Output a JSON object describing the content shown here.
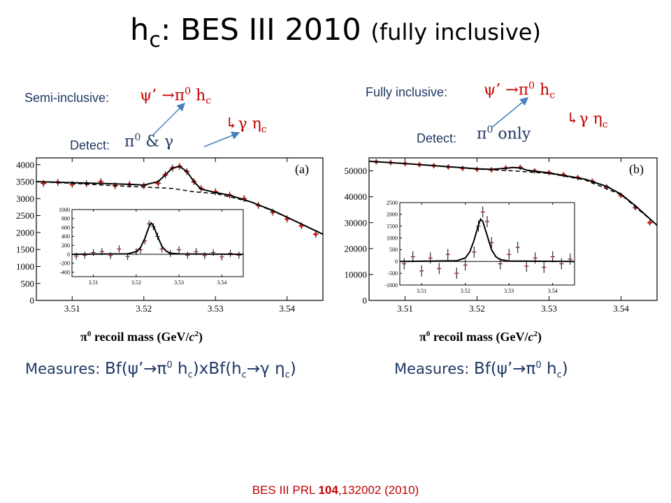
{
  "title": {
    "main": "h",
    "sub": "c",
    "rest": ": BES III 2010 ",
    "paren": "(fully inclusive)"
  },
  "left": {
    "semi_label": "Semi-inclusive:",
    "reaction": {
      "psi": "ψ’",
      "arrow": "→",
      "pi": "π",
      "pi_sup": "0",
      "h": " h",
      "h_sub": "c"
    },
    "decay": {
      "hook": "↳",
      "gamma": "γ",
      "eta": " η",
      "eta_sub": "c"
    },
    "detect_label": "Detect:",
    "detect_value": {
      "pi": "π",
      "pi_sup": "0",
      "rest": " & γ"
    },
    "measures_label": "Measures: ",
    "measures_value": {
      "a": "Bf(ψ’→π",
      "a_sup": "0",
      "b": " h",
      "b_sub": "c",
      "c": ")xBf(h",
      "c_sub": "c",
      "d": "→γ η",
      "d_sub": "c",
      "e": ")"
    }
  },
  "right": {
    "full_label": "Fully inclusive:",
    "reaction": {
      "psi": "ψ’",
      "arrow": "→",
      "pi": "π",
      "pi_sup": "0",
      "h": " h",
      "h_sub": "c"
    },
    "decay": {
      "hook": "↳",
      "gamma": "γ",
      "eta": " η",
      "eta_sub": "c"
    },
    "detect_label": "Detect:",
    "detect_value": {
      "pi": "π",
      "pi_sup": "0",
      "rest": " only"
    },
    "measures_label": "Measures: ",
    "measures_value": {
      "a": "Bf(ψ’→π",
      "a_sup": "0",
      "b": " h",
      "b_sub": "c",
      "c": ")"
    }
  },
  "footer": {
    "a": "BES III PRL ",
    "b": "104",
    "c": ",132002 (2010)"
  },
  "chart_data": [
    {
      "type": "scatter",
      "panel": "(a)",
      "xlabel": "π⁰ recoil mass (GeV/c²)",
      "xlim": [
        3.505,
        3.545
      ],
      "ylim": [
        0,
        4200
      ],
      "xticks": [
        3.51,
        3.52,
        3.53,
        3.54
      ],
      "yticks": [
        0,
        500,
        1000,
        1500,
        2000,
        2500,
        3000,
        3500,
        4000
      ],
      "series": [
        {
          "kind": "data",
          "x": [
            3.506,
            3.508,
            3.51,
            3.512,
            3.514,
            3.516,
            3.518,
            3.52,
            3.522,
            3.523,
            3.524,
            3.525,
            3.526,
            3.527,
            3.528,
            3.53,
            3.532,
            3.534,
            3.536,
            3.538,
            3.54,
            3.542,
            3.544
          ],
          "y": [
            3450,
            3480,
            3420,
            3440,
            3500,
            3380,
            3420,
            3380,
            3450,
            3700,
            3900,
            3950,
            3800,
            3500,
            3300,
            3200,
            3100,
            3000,
            2800,
            2600,
            2400,
            2200,
            1950
          ]
        },
        {
          "kind": "fit",
          "x": [
            3.505,
            3.51,
            3.515,
            3.518,
            3.52,
            3.522,
            3.523,
            3.524,
            3.525,
            3.526,
            3.527,
            3.528,
            3.53,
            3.532,
            3.535,
            3.538,
            3.54,
            3.542,
            3.545
          ],
          "y": [
            3500,
            3470,
            3440,
            3420,
            3400,
            3500,
            3700,
            3900,
            3950,
            3800,
            3500,
            3280,
            3180,
            3100,
            2900,
            2650,
            2450,
            2250,
            1950
          ]
        },
        {
          "kind": "background",
          "x": [
            3.505,
            3.51,
            3.515,
            3.52,
            3.524,
            3.527,
            3.53,
            3.535,
            3.54,
            3.545
          ],
          "y": [
            3500,
            3450,
            3390,
            3340,
            3300,
            3200,
            3150,
            2900,
            2450,
            1950
          ]
        }
      ]
    },
    {
      "type": "scatter",
      "panel": "(a) inset",
      "xlim": [
        3.505,
        3.545
      ],
      "ylim": [
        -500,
        1000
      ],
      "xticks": [
        3.51,
        3.52,
        3.53,
        3.54
      ],
      "yticks": [
        -400,
        -200,
        0,
        200,
        400,
        600,
        800,
        1000
      ],
      "series": [
        {
          "kind": "data",
          "x": [
            3.506,
            3.508,
            3.51,
            3.512,
            3.514,
            3.516,
            3.518,
            3.52,
            3.521,
            3.522,
            3.523,
            3.524,
            3.525,
            3.526,
            3.528,
            3.53,
            3.532,
            3.534,
            3.536,
            3.538,
            3.54,
            3.542,
            3.544
          ],
          "y": [
            -40,
            -20,
            40,
            60,
            -30,
            120,
            -50,
            60,
            100,
            300,
            680,
            620,
            400,
            120,
            20,
            100,
            -20,
            60,
            -30,
            40,
            -60,
            20,
            -20
          ]
        },
        {
          "kind": "fit",
          "x": [
            3.505,
            3.518,
            3.52,
            3.521,
            3.522,
            3.523,
            3.5235,
            3.524,
            3.525,
            3.526,
            3.527,
            3.528,
            3.53,
            3.545
          ],
          "y": [
            0,
            10,
            60,
            150,
            350,
            620,
            700,
            640,
            400,
            180,
            70,
            25,
            8,
            0
          ]
        }
      ]
    },
    {
      "type": "scatter",
      "panel": "(b)",
      "xlabel": "π⁰ recoil mass (GeV/c²)",
      "xlim": [
        3.505,
        3.545
      ],
      "ylim": [
        0,
        55000
      ],
      "xticks": [
        3.51,
        3.52,
        3.53,
        3.54
      ],
      "yticks": [
        0,
        10000,
        20000,
        30000,
        40000,
        50000
      ],
      "series": [
        {
          "kind": "data",
          "x": [
            3.506,
            3.508,
            3.51,
            3.512,
            3.514,
            3.516,
            3.518,
            3.52,
            3.522,
            3.524,
            3.526,
            3.528,
            3.53,
            3.532,
            3.534,
            3.536,
            3.538,
            3.54,
            3.542,
            3.544
          ],
          "y": [
            53500,
            53200,
            52800,
            52400,
            52000,
            51500,
            51000,
            50600,
            50400,
            51100,
            51300,
            50000,
            49300,
            48500,
            47400,
            46000,
            43800,
            40500,
            35800,
            30000
          ]
        },
        {
          "kind": "fit",
          "x": [
            3.505,
            3.51,
            3.515,
            3.52,
            3.522,
            3.524,
            3.525,
            3.526,
            3.527,
            3.53,
            3.535,
            3.538,
            3.54,
            3.542,
            3.545
          ],
          "y": [
            53700,
            52800,
            51800,
            50800,
            50600,
            51000,
            51300,
            51100,
            50200,
            49200,
            46800,
            44000,
            41000,
            36500,
            29000
          ]
        },
        {
          "kind": "background",
          "x": [
            3.505,
            3.51,
            3.515,
            3.52,
            3.525,
            3.53,
            3.535,
            3.54,
            3.545
          ],
          "y": [
            53700,
            52800,
            51800,
            50700,
            50000,
            49000,
            46500,
            40800,
            29000
          ]
        }
      ]
    },
    {
      "type": "scatter",
      "panel": "(b) inset",
      "xlim": [
        3.505,
        3.545
      ],
      "ylim": [
        -1000,
        2500
      ],
      "xticks": [
        3.51,
        3.52,
        3.53,
        3.54
      ],
      "yticks": [
        -1000,
        -500,
        0,
        500,
        1000,
        1500,
        2000,
        2500
      ],
      "series": [
        {
          "kind": "data",
          "x": [
            3.506,
            3.508,
            3.51,
            3.512,
            3.514,
            3.516,
            3.518,
            3.52,
            3.522,
            3.523,
            3.524,
            3.525,
            3.526,
            3.528,
            3.53,
            3.532,
            3.534,
            3.536,
            3.538,
            3.54,
            3.542,
            3.544
          ],
          "y": [
            -100,
            200,
            -400,
            150,
            -300,
            300,
            -500,
            -150,
            400,
            1500,
            2100,
            1700,
            800,
            -100,
            300,
            600,
            -200,
            150,
            -250,
            200,
            -100,
            100
          ]
        },
        {
          "kind": "fit",
          "x": [
            3.505,
            3.518,
            3.52,
            3.521,
            3.522,
            3.523,
            3.5235,
            3.524,
            3.525,
            3.526,
            3.527,
            3.528,
            3.53,
            3.545
          ],
          "y": [
            0,
            30,
            150,
            400,
            900,
            1550,
            1800,
            1700,
            1100,
            500,
            200,
            80,
            20,
            0
          ]
        }
      ]
    }
  ]
}
